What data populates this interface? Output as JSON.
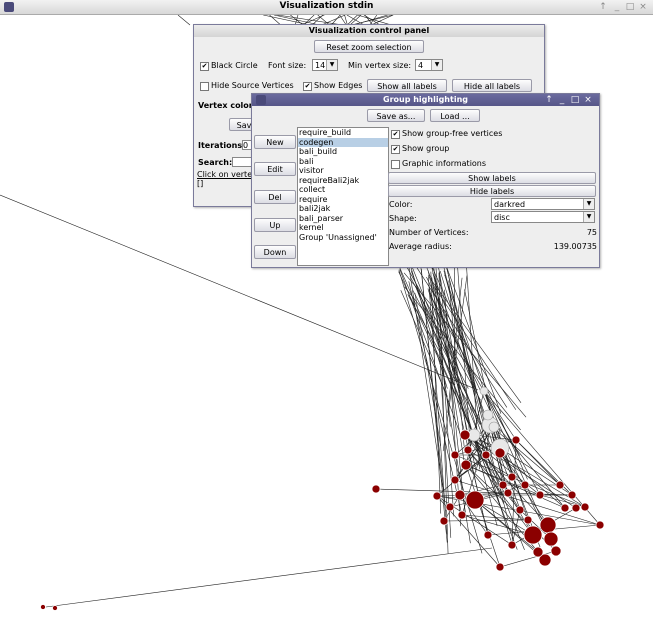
{
  "app": {
    "title": "Visualization stdin"
  },
  "control_panel": {
    "title": "Visualization control panel",
    "reset_zoom": "Reset zoom selection",
    "black_circle": "Black Circle",
    "font_size_label": "Font size:",
    "font_size_value": "14",
    "min_vertex_label": "Min vertex size:",
    "min_vertex_value": "4",
    "hide_source": "Hide Source Vertices",
    "show_edges": "Show Edges",
    "show_all_labels": "Show all labels",
    "hide_all_labels": "Hide all labels",
    "vertex_color_label": "Vertex color:",
    "save_partial": "Sav",
    "iterations_label": "Iterations:",
    "iterations_value": "0",
    "search_label": "Search:",
    "click_on_vertex": "Click on verte",
    "brackets": "[]"
  },
  "group_panel": {
    "title": "Group highlighting",
    "save_as": "Save as...",
    "load": "Load ...",
    "side_buttons": [
      "New",
      "Edit",
      "Del",
      "Up",
      "Down"
    ],
    "groups": [
      "require_build",
      "codegen",
      "bali_build",
      "bali",
      "visitor",
      "requireBali2jak",
      "collect",
      "require",
      "bali2jak",
      "bali_parser",
      "kernel",
      "Group 'Unassigned'"
    ],
    "selected_index": 1,
    "show_group_free": "Show group-free vertices",
    "show_group": "Show group",
    "graphic_info": "Graphic informations",
    "show_labels": "Show labels",
    "hide_labels": "Hide labels",
    "color_label": "Color:",
    "color_value": "darkred",
    "shape_label": "Shape:",
    "shape_value": "disc",
    "num_vertices_label": "Number of Vertices:",
    "num_vertices_value": "75",
    "avg_radius_label": "Average radius:",
    "avg_radius_value": "139.00735"
  },
  "colors": {
    "vertex": "#8b0000",
    "free_vertex": "#e8e8e8",
    "group_title": "#5f5f93"
  },
  "icons": [
    "app-icon",
    "minimize-icon",
    "maximize-icon",
    "close-icon",
    "arrow-icon",
    "checkbox-icon",
    "dropdown-arrow-icon"
  ]
}
